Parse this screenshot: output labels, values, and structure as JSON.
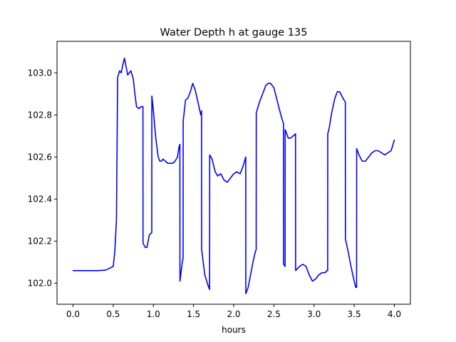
{
  "chart_data": {
    "type": "line",
    "title": "Water Depth h at gauge 135",
    "xlabel": "hours",
    "ylabel": "",
    "xlim": [
      -0.2,
      4.2
    ],
    "ylim": [
      101.9,
      103.15
    ],
    "grid": false,
    "legend": "none",
    "x_ticks": [
      0.0,
      0.5,
      1.0,
      1.5,
      2.0,
      2.5,
      3.0,
      3.5,
      4.0
    ],
    "x_tick_labels": [
      "0.0",
      "0.5",
      "1.0",
      "1.5",
      "2.0",
      "2.5",
      "3.0",
      "3.5",
      "4.0"
    ],
    "y_ticks": [
      102.0,
      102.2,
      102.4,
      102.6,
      102.8,
      103.0
    ],
    "y_tick_labels": [
      "102.0",
      "102.2",
      "102.4",
      "102.6",
      "102.8",
      "103.0"
    ],
    "series": [
      {
        "color": "#0000ff",
        "x": [
          0.0,
          0.3,
          0.4,
          0.45,
          0.5,
          0.52,
          0.54,
          0.555,
          0.556,
          0.58,
          0.6,
          0.62,
          0.64,
          0.66,
          0.68,
          0.7,
          0.72,
          0.75,
          0.77,
          0.79,
          0.82,
          0.85,
          0.87,
          0.871,
          0.9,
          0.92,
          0.95,
          0.98,
          0.981,
          1.0,
          1.03,
          1.06,
          1.08,
          1.1,
          1.12,
          1.15,
          1.18,
          1.21,
          1.24,
          1.27,
          1.3,
          1.32,
          1.33,
          1.331,
          1.36,
          1.37,
          1.371,
          1.4,
          1.43,
          1.46,
          1.49,
          1.52,
          1.55,
          1.59,
          1.6,
          1.601,
          1.64,
          1.68,
          1.7,
          1.701,
          1.73,
          1.77,
          1.8,
          1.84,
          1.88,
          1.92,
          1.96,
          2.0,
          2.04,
          2.08,
          2.12,
          2.15,
          2.151,
          2.18,
          2.21,
          2.24,
          2.27,
          2.28,
          2.281,
          2.32,
          2.36,
          2.4,
          2.43,
          2.46,
          2.5,
          2.54,
          2.58,
          2.61,
          2.62,
          2.621,
          2.64,
          2.641,
          2.66,
          2.68,
          2.71,
          2.74,
          2.77,
          2.771,
          2.82,
          2.86,
          2.9,
          2.94,
          2.98,
          3.02,
          3.06,
          3.1,
          3.14,
          3.16,
          3.17,
          3.171,
          3.19,
          3.22,
          3.26,
          3.29,
          3.32,
          3.36,
          3.39,
          3.391,
          3.42,
          3.46,
          3.5,
          3.52,
          3.53,
          3.531,
          3.56,
          3.6,
          3.64,
          3.68,
          3.72,
          3.76,
          3.8,
          3.84,
          3.88,
          3.92,
          3.96,
          4.0
        ],
        "y": [
          102.06,
          102.06,
          102.062,
          102.07,
          102.08,
          102.15,
          102.3,
          102.98,
          102.98,
          103.01,
          103.0,
          103.04,
          103.07,
          103.03,
          102.99,
          103.0,
          103.01,
          102.97,
          102.9,
          102.84,
          102.83,
          102.84,
          102.84,
          102.19,
          102.17,
          102.17,
          102.23,
          102.24,
          102.89,
          102.82,
          102.69,
          102.6,
          102.58,
          102.58,
          102.59,
          102.58,
          102.57,
          102.57,
          102.57,
          102.58,
          102.6,
          102.65,
          102.66,
          102.01,
          102.1,
          102.12,
          102.77,
          102.87,
          102.88,
          102.91,
          102.95,
          102.92,
          102.87,
          102.8,
          102.82,
          102.16,
          102.04,
          101.99,
          101.97,
          102.61,
          102.59,
          102.53,
          102.51,
          102.52,
          102.49,
          102.48,
          102.5,
          102.52,
          102.53,
          102.52,
          102.56,
          102.6,
          101.95,
          101.98,
          102.04,
          102.1,
          102.15,
          102.16,
          102.81,
          102.86,
          102.9,
          102.94,
          102.95,
          102.95,
          102.93,
          102.87,
          102.81,
          102.77,
          102.76,
          102.09,
          102.08,
          102.73,
          102.71,
          102.69,
          102.69,
          102.7,
          102.71,
          102.06,
          102.08,
          102.09,
          102.08,
          102.04,
          102.01,
          102.02,
          102.04,
          102.05,
          102.05,
          102.06,
          102.06,
          102.71,
          102.74,
          102.81,
          102.88,
          102.91,
          102.91,
          102.88,
          102.86,
          102.21,
          102.16,
          102.08,
          102.01,
          101.98,
          101.98,
          102.64,
          102.61,
          102.58,
          102.58,
          102.6,
          102.62,
          102.63,
          102.63,
          102.62,
          102.61,
          102.62,
          102.63,
          102.68
        ]
      }
    ]
  }
}
